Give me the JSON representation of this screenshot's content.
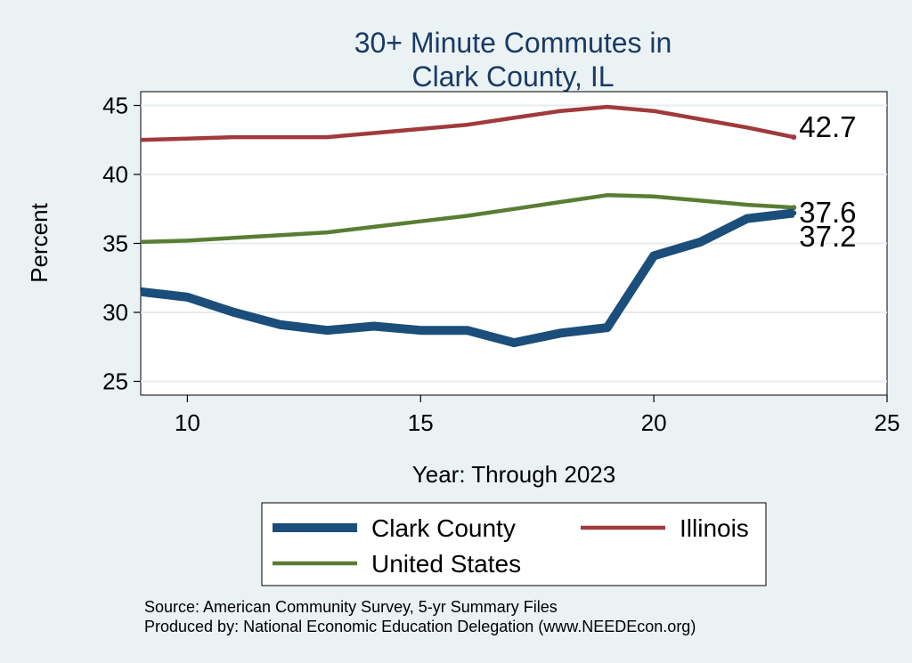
{
  "chart_data": {
    "type": "line",
    "title": [
      "30+ Minute Commutes in",
      "Clark County, IL"
    ],
    "xlabel": "Year: Through 2023",
    "ylabel": "Percent",
    "xlim": [
      9,
      25
    ],
    "ylim": [
      24,
      46
    ],
    "xticks": [
      10,
      15,
      20,
      25
    ],
    "yticks": [
      25,
      30,
      35,
      40,
      45
    ],
    "grid": true,
    "x": [
      9,
      10,
      11,
      12,
      13,
      14,
      15,
      16,
      17,
      18,
      19,
      20,
      21,
      22,
      23
    ],
    "series": [
      {
        "name": "Clark County",
        "color": "#1b4e7a",
        "width": "thick",
        "values": [
          31.5,
          31.1,
          30.0,
          29.1,
          28.7,
          29.0,
          28.7,
          28.7,
          27.8,
          28.5,
          28.9,
          34.1,
          35.1,
          36.8,
          37.2
        ],
        "end_label": "37.2"
      },
      {
        "name": "Illinois",
        "color": "#a03a3c",
        "width": "thin",
        "values": [
          42.5,
          42.6,
          42.7,
          42.7,
          42.7,
          43.0,
          43.3,
          43.6,
          44.1,
          44.6,
          44.9,
          44.6,
          44.0,
          43.4,
          42.7
        ],
        "end_label": "42.7"
      },
      {
        "name": "United States",
        "color": "#5a7d33",
        "width": "thin",
        "values": [
          35.1,
          35.2,
          35.4,
          35.6,
          35.8,
          36.2,
          36.6,
          37.0,
          37.5,
          38.0,
          38.5,
          38.4,
          38.1,
          37.8,
          37.6
        ],
        "end_label": "37.6"
      }
    ],
    "legend": {
      "placement": "bottom",
      "order": [
        "Clark County",
        "Illinois",
        "United States"
      ]
    },
    "notes": [
      "Source: American Community Survey, 5-yr Summary Files",
      "Produced by: National Economic Education Delegation (www.NEEDEcon.org)"
    ]
  },
  "colors": {
    "background": "#eaf2f3",
    "plot_background": "#ffffff",
    "grid": "#e7ecee",
    "title": "#1a3a66"
  }
}
